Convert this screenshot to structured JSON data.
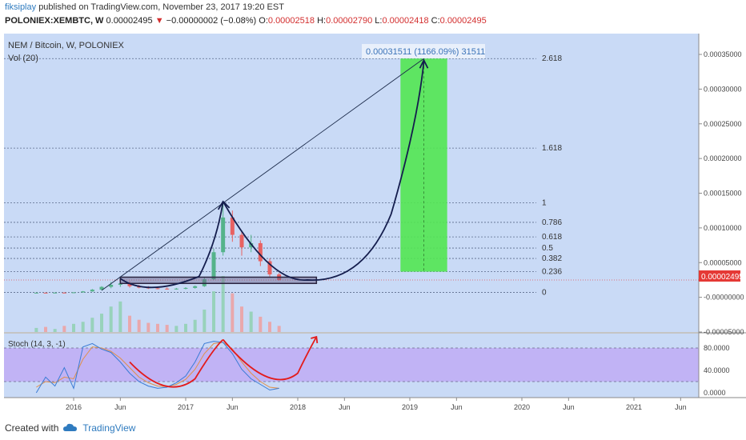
{
  "header": {
    "author": "fiksiplay",
    "published_text": "published on TradingView.com, November 23, 2017 19:20 EST",
    "symbol": "POLONIEX:XEMBTC, W",
    "last": "0.00002495",
    "change": "−0.00000002 (−0.08%)",
    "o_label": "O:",
    "o_value": "0.00002518",
    "h_label": "H:",
    "h_value": "0.00002790",
    "l_label": "L:",
    "l_value": "0.00002418",
    "c_label": "C:",
    "c_value": "0.00002495"
  },
  "main_pane": {
    "title": "NEM / Bitcoin, W, POLONIEX",
    "volume_label": "Vol (20)",
    "target_label": "0.00031511 (1166.09%) 31511",
    "last_price_badge": "0.00002495"
  },
  "stoch_pane": {
    "title": "Stoch (14, 3, -1)"
  },
  "footer": {
    "created_with": "Created with",
    "brand": "TradingView"
  },
  "colors": {
    "main_bg": "#c9daf6",
    "stoch_band": "#c1b3f5",
    "projection_green": "#52e552",
    "curve_navy": "#141d4d",
    "curve_red": "#e31b1b",
    "candle_up": "#55b38a",
    "candle_down": "#e86262",
    "volume_up": "#8fd0b0",
    "volume_down": "#ef9f9f",
    "price_line": "#e85050"
  },
  "chart_data": {
    "type": "candlestick",
    "symbol": "POLONIEX:XEMBTC",
    "timeframe": "W",
    "x_tick_labels": [
      "2016",
      "Jun",
      "2017",
      "Jun",
      "2018",
      "Jun",
      "2019",
      "Jun",
      "2020",
      "Jun",
      "2021",
      "Jun"
    ],
    "price_axis": {
      "ticks": [
        0.00035,
        0.0003,
        0.00025,
        0.0002,
        0.00015,
        0.0001,
        5e-05,
        0.0,
        -5e-05
      ],
      "tick_labels": [
        "0.00035000",
        "0.00030000",
        "0.00025000",
        "0.00020000",
        "0.00015000",
        "0.00010000",
        "0.00005000",
        "-0.00000000",
        "-0.00005000"
      ],
      "range": [
        -5e-05,
        0.00038
      ]
    },
    "fibonacci": {
      "levels": [
        "2.618",
        "1.618",
        "1",
        "0.786",
        "0.618",
        "0.5",
        "0.382",
        "0.236",
        "0"
      ],
      "level_prices": [
        0.000344,
        0.000215,
        0.000136,
        0.000108,
        8.7e-05,
        7.1e-05,
        5.6e-05,
        3.7e-05,
        7e-06
      ]
    },
    "target": {
      "price": 0.00031511,
      "percent": 1166.09,
      "points": 31511
    },
    "last_price": 2.495e-05,
    "ohlc": [
      [
        "2015-09",
        6.5e-06,
        6.8e-06,
        6.2e-06,
        6.6e-06
      ],
      [
        "2015-10",
        6.6e-06,
        6.9e-06,
        6.3e-06,
        6.5e-06
      ],
      [
        "2015-11",
        6.5e-06,
        7e-06,
        6.3e-06,
        6.7e-06
      ],
      [
        "2015-12",
        6.7e-06,
        7.2e-06,
        6.4e-06,
        6.6e-06
      ],
      [
        "2016-01",
        6.6e-06,
        7.4e-06,
        6.4e-06,
        7.1e-06
      ],
      [
        "2016-02",
        7.1e-06,
        9e-06,
        6.8e-06,
        8.5e-06
      ],
      [
        "2016-03",
        8.5e-06,
        1.2e-05,
        8e-06,
        1.1e-05
      ],
      [
        "2016-04",
        1.1e-05,
        1.6e-05,
        1e-05,
        1.5e-05
      ],
      [
        "2016-05",
        1.5e-05,
        2.2e-05,
        1.3e-05,
        1.8e-05
      ],
      [
        "2016-06",
        1.8e-05,
        2.7e-05,
        1.5e-05,
        2e-05
      ],
      [
        "2016-07",
        2e-05,
        2.3e-05,
        1.4e-05,
        1.6e-05
      ],
      [
        "2016-08",
        1.6e-05,
        1.8e-05,
        1.3e-05,
        1.4e-05
      ],
      [
        "2016-09",
        1.4e-05,
        1.6e-05,
        1.2e-05,
        1.3e-05
      ],
      [
        "2016-10",
        1.3e-05,
        1.5e-05,
        1.15e-05,
        1.25e-05
      ],
      [
        "2016-11",
        1.25e-05,
        1.4e-05,
        1.1e-05,
        1.2e-05
      ],
      [
        "2016-12",
        1.2e-05,
        1.35e-05,
        1.1e-05,
        1.25e-05
      ],
      [
        "2017-01",
        1.25e-05,
        1.45e-05,
        1.15e-05,
        1.35e-05
      ],
      [
        "2017-02",
        1.35e-05,
        1.7e-05,
        1.25e-05,
        1.6e-05
      ],
      [
        "2017-03",
        1.6e-05,
        2.9e-05,
        1.5e-05,
        2.6e-05
      ],
      [
        "2017-04",
        2.6e-05,
        7e-05,
        2.5e-05,
        6.5e-05
      ],
      [
        "2017-05",
        6.5e-05,
        0.000135,
        6e-05,
        0.000115
      ],
      [
        "2017-06",
        0.000115,
        0.000125,
        8e-05,
        9e-05
      ],
      [
        "2017-07",
        9e-05,
        9.5e-05,
        6e-05,
        7.2e-05
      ],
      [
        "2017-08",
        7.2e-05,
        9e-05,
        6.5e-05,
        7.8e-05
      ],
      [
        "2017-09",
        7.8e-05,
        8.2e-05,
        4.5e-05,
        5.2e-05
      ],
      [
        "2017-10",
        5.2e-05,
        5.6e-05,
        3e-05,
        3.3e-05
      ],
      [
        "2017-11",
        3.3e-05,
        3.5e-05,
        2.42e-05,
        2.5e-05
      ]
    ],
    "stochastic": {
      "title": "Stoch (14, 3, -1)",
      "ticks": [
        80,
        40,
        0
      ],
      "tick_labels": [
        "80.0000",
        "40.0000",
        "0.0000"
      ],
      "band": [
        20,
        80
      ],
      "k": [
        {
          "t": "2015-09",
          "v": 0
        },
        {
          "t": "2015-10",
          "v": 28
        },
        {
          "t": "2015-11",
          "v": 12
        },
        {
          "t": "2015-12",
          "v": 45
        },
        {
          "t": "2016-01",
          "v": 8
        },
        {
          "t": "2016-02",
          "v": 82
        },
        {
          "t": "2016-03",
          "v": 88
        },
        {
          "t": "2016-04",
          "v": 78
        },
        {
          "t": "2016-05",
          "v": 72
        },
        {
          "t": "2016-06",
          "v": 55
        },
        {
          "t": "2016-07",
          "v": 35
        },
        {
          "t": "2016-08",
          "v": 20
        },
        {
          "t": "2016-09",
          "v": 12
        },
        {
          "t": "2016-10",
          "v": 8
        },
        {
          "t": "2016-11",
          "v": 10
        },
        {
          "t": "2016-12",
          "v": 18
        },
        {
          "t": "2017-01",
          "v": 30
        },
        {
          "t": "2017-02",
          "v": 55
        },
        {
          "t": "2017-03",
          "v": 88
        },
        {
          "t": "2017-04",
          "v": 92
        },
        {
          "t": "2017-05",
          "v": 90
        },
        {
          "t": "2017-06",
          "v": 70
        },
        {
          "t": "2017-07",
          "v": 42
        },
        {
          "t": "2017-08",
          "v": 25
        },
        {
          "t": "2017-09",
          "v": 15
        },
        {
          "t": "2017-10",
          "v": 5
        },
        {
          "t": "2017-11",
          "v": 8
        }
      ],
      "d": [
        {
          "t": "2015-09",
          "v": 10
        },
        {
          "t": "2015-10",
          "v": 20
        },
        {
          "t": "2015-11",
          "v": 18
        },
        {
          "t": "2015-12",
          "v": 28
        },
        {
          "t": "2016-01",
          "v": 25
        },
        {
          "t": "2016-02",
          "v": 60
        },
        {
          "t": "2016-03",
          "v": 82
        },
        {
          "t": "2016-04",
          "v": 80
        },
        {
          "t": "2016-05",
          "v": 74
        },
        {
          "t": "2016-06",
          "v": 62
        },
        {
          "t": "2016-07",
          "v": 45
        },
        {
          "t": "2016-08",
          "v": 28
        },
        {
          "t": "2016-09",
          "v": 18
        },
        {
          "t": "2016-10",
          "v": 12
        },
        {
          "t": "2016-11",
          "v": 11
        },
        {
          "t": "2016-12",
          "v": 15
        },
        {
          "t": "2017-01",
          "v": 24
        },
        {
          "t": "2017-02",
          "v": 42
        },
        {
          "t": "2017-03",
          "v": 70
        },
        {
          "t": "2017-04",
          "v": 88
        },
        {
          "t": "2017-05",
          "v": 90
        },
        {
          "t": "2017-06",
          "v": 78
        },
        {
          "t": "2017-07",
          "v": 55
        },
        {
          "t": "2017-08",
          "v": 35
        },
        {
          "t": "2017-09",
          "v": 20
        },
        {
          "t": "2017-10",
          "v": 10
        },
        {
          "t": "2017-11",
          "v": 8
        }
      ]
    },
    "volume": [
      4,
      5,
      3,
      6,
      8,
      10,
      14,
      18,
      25,
      30,
      16,
      12,
      9,
      8,
      7,
      6,
      8,
      12,
      22,
      40,
      55,
      38,
      25,
      20,
      15,
      10,
      6
    ]
  }
}
